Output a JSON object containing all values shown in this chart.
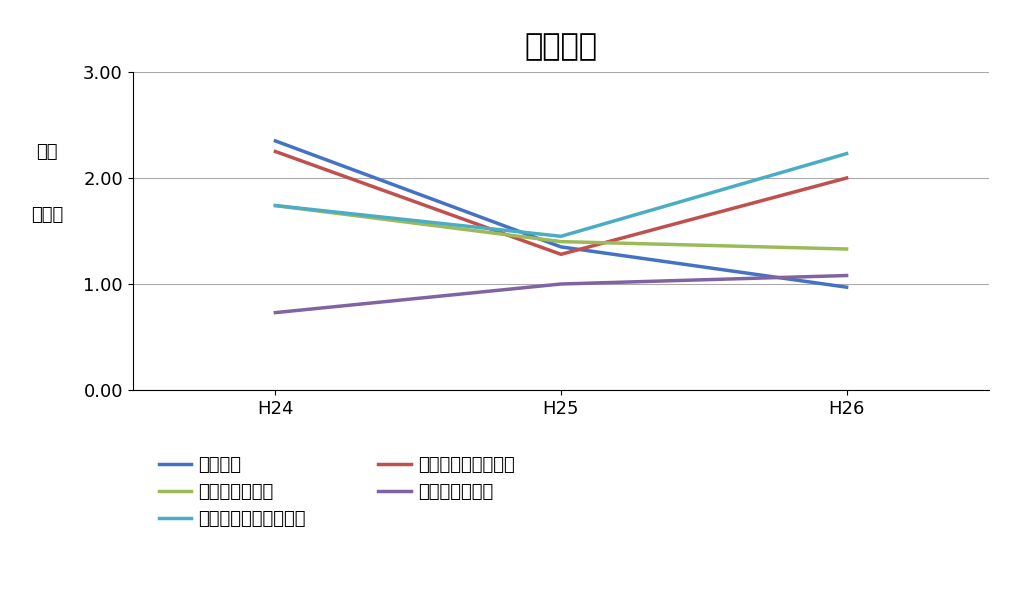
{
  "title": "学力選抜",
  "ylabel_line1": "倍率",
  "ylabel_line2": "（倍）",
  "x_labels": [
    "H24",
    "H25",
    "H26"
  ],
  "x_values": [
    0,
    1,
    2
  ],
  "ylim": [
    0.0,
    3.0
  ],
  "yticks": [
    0.0,
    1.0,
    2.0,
    3.0
  ],
  "series": [
    {
      "name": "機械工学",
      "values": [
        2.35,
        1.35,
        0.97
      ],
      "color": "#4472C4"
    },
    {
      "name": "電気・電子情報工学",
      "values": [
        2.25,
        1.28,
        2.0
      ],
      "color": "#C0504D"
    },
    {
      "name": "情報・知能工学",
      "values": [
        1.74,
        1.4,
        1.33
      ],
      "color": "#9BBB59"
    },
    {
      "name": "環境・生命工学",
      "values": [
        0.73,
        1.0,
        1.08
      ],
      "color": "#8064A2"
    },
    {
      "name": "建築・都市システム学",
      "values": [
        1.74,
        1.45,
        2.23
      ],
      "color": "#4BACC6"
    }
  ],
  "legend_order": [
    0,
    2,
    4,
    1,
    3
  ],
  "background_color": "#FFFFFF",
  "grid_color": "#AAAAAA",
  "title_fontsize": 22,
  "axis_fontsize": 13,
  "tick_fontsize": 13,
  "legend_fontsize": 13
}
